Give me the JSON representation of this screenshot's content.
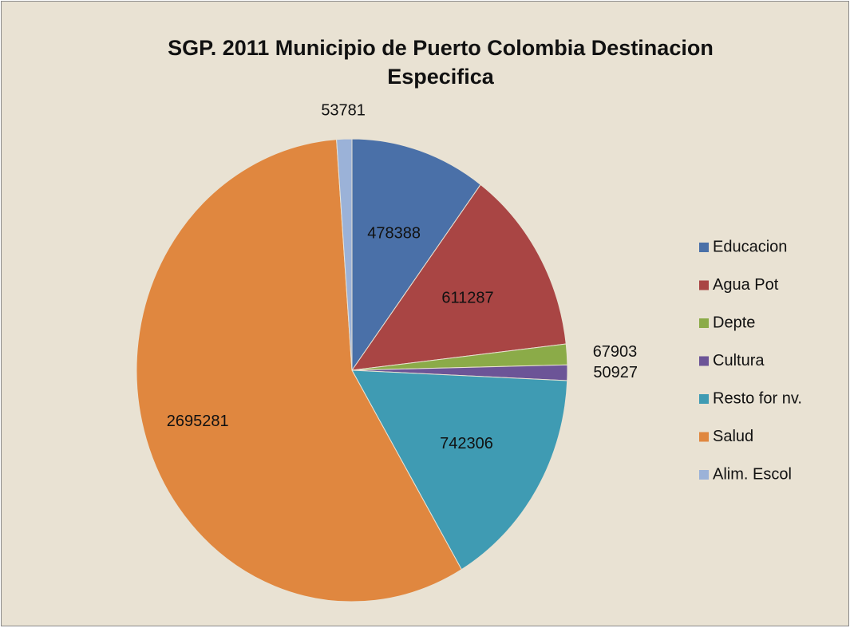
{
  "chart_data": {
    "type": "pie",
    "title": "SGP. 2011 Municipio de Puerto Colombia Destinacion Especifica",
    "categories": [
      "Educacion",
      "Agua Pot",
      "Depte",
      "Cultura",
      "Resto for nv.",
      "Salud",
      "Alim. Escol"
    ],
    "values": [
      478388,
      611287,
      67903,
      50927,
      742306,
      2695281,
      53781
    ],
    "colors": [
      "#4a70a8",
      "#a94544",
      "#8bab48",
      "#6c5497",
      "#3f9bb3",
      "#e0873f",
      "#9bb2d8"
    ],
    "legend": "right"
  }
}
